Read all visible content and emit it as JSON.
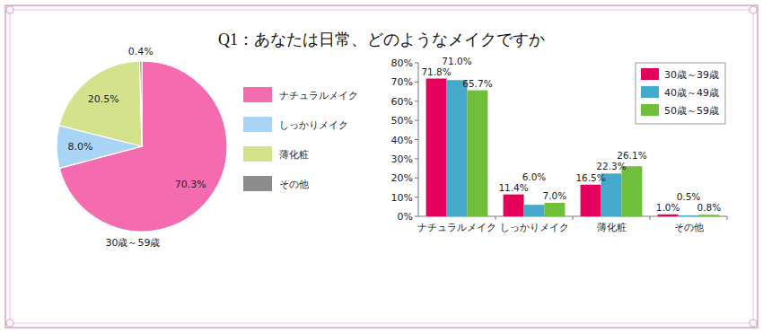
{
  "title": "Q1：あなたは日常、どのようなメイクですか",
  "chart_data": [
    {
      "type": "pie",
      "subtitle": "30歳～59歳",
      "categories": [
        "ナチュラルメイク",
        "しっかりメイク",
        "薄化粧",
        "その他"
      ],
      "values": [
        70.3,
        8.0,
        20.5,
        0.4
      ],
      "value_labels": [
        "70.3%",
        "8.0%",
        "20.5%",
        "0.4%"
      ],
      "colors": [
        "#f46bb0",
        "#aad4f5",
        "#d4e28c",
        "#8c8c8c"
      ],
      "data_labels": true,
      "legend": "right"
    },
    {
      "type": "bar",
      "categories": [
        "ナチュラルメイク",
        "しっかりメイク",
        "薄化粧",
        "その他"
      ],
      "series": [
        {
          "name": "30歳～39歳",
          "color": "#e4005b",
          "values": [
            71.8,
            11.4,
            16.5,
            1.0
          ],
          "value_labels": [
            "71.8%",
            "11.4%",
            "16.5%",
            "1.0%"
          ]
        },
        {
          "name": "40歳～49歳",
          "color": "#45a9cc",
          "values": [
            71.0,
            6.0,
            22.3,
            0.5
          ],
          "value_labels": [
            "71.0%",
            "6.0%",
            "22.3%",
            "0.5%"
          ]
        },
        {
          "name": "50歳～59歳",
          "color": "#6fbf3a",
          "values": [
            65.7,
            7.0,
            26.1,
            0.8
          ],
          "value_labels": [
            "65.7%",
            "7.0%",
            "26.1%",
            "0.8%"
          ]
        }
      ],
      "ylim": [
        0,
        80
      ],
      "yticks": [
        {
          "value": 0,
          "label": "0%"
        },
        {
          "value": 10,
          "label": "10%"
        },
        {
          "value": 20,
          "label": "20%"
        },
        {
          "value": 30,
          "label": "30%"
        },
        {
          "value": 40,
          "label": "40%"
        },
        {
          "value": 50,
          "label": "50%"
        },
        {
          "value": 60,
          "label": "60%"
        },
        {
          "value": 70,
          "label": "70%"
        },
        {
          "value": 80,
          "label": "80%"
        }
      ],
      "grid": false,
      "legend": "upper right",
      "data_labels": true
    }
  ]
}
